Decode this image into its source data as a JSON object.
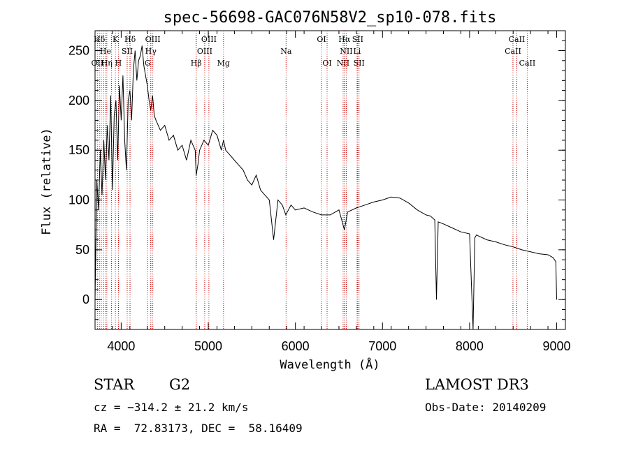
{
  "chart_data": {
    "type": "line",
    "title": "spec-56698-GAC076N58V2_sp10-078.fits",
    "xlabel": "Wavelength (Å)",
    "ylabel": "Flux (relative)",
    "xlim": [
      3700,
      9100
    ],
    "ylim": [
      -30,
      270
    ],
    "xticks": [
      4000,
      5000,
      6000,
      7000,
      8000,
      9000
    ],
    "yticks": [
      0,
      50,
      100,
      150,
      200,
      250
    ],
    "series": [
      {
        "x": [
          3700,
          3720,
          3740,
          3760,
          3780,
          3800,
          3820,
          3840,
          3860,
          3880,
          3900,
          3920,
          3940,
          3960,
          3980,
          4000,
          4020,
          4040,
          4060,
          4080,
          4100,
          4120,
          4140,
          4160,
          4180,
          4200,
          4220,
          4240,
          4260,
          4280,
          4300,
          4320,
          4340,
          4360,
          4380,
          4400,
          4450,
          4500,
          4550,
          4600,
          4650,
          4700,
          4750,
          4800,
          4850,
          4861,
          4880,
          4900,
          4950,
          5000,
          5050,
          5100,
          5150,
          5175,
          5200,
          5250,
          5300,
          5350,
          5400,
          5450,
          5500,
          5550,
          5600,
          5650,
          5700,
          5750,
          5800,
          5850,
          5890,
          5950,
          6000,
          6100,
          6200,
          6300,
          6400,
          6500,
          6563,
          6600,
          6700,
          6800,
          6900,
          7000,
          7100,
          7200,
          7300,
          7400,
          7500,
          7550,
          7600,
          7620,
          7640,
          7700,
          7800,
          7900,
          8000,
          8040,
          8060,
          8080,
          8100,
          8200,
          8300,
          8400,
          8500,
          8600,
          8700,
          8800,
          8900,
          8960,
          8990,
          9000
        ],
        "y": [
          0,
          120,
          90,
          150,
          105,
          160,
          120,
          175,
          140,
          205,
          110,
          185,
          200,
          140,
          215,
          180,
          225,
          160,
          130,
          200,
          210,
          180,
          230,
          250,
          220,
          240,
          245,
          255,
          235,
          225,
          215,
          200,
          190,
          205,
          185,
          180,
          170,
          175,
          160,
          165,
          150,
          155,
          140,
          160,
          150,
          125,
          135,
          150,
          160,
          155,
          170,
          165,
          150,
          160,
          150,
          145,
          140,
          135,
          130,
          120,
          115,
          125,
          110,
          105,
          100,
          60,
          100,
          95,
          85,
          95,
          90,
          92,
          88,
          85,
          85,
          90,
          70,
          88,
          92,
          95,
          98,
          100,
          103,
          102,
          97,
          90,
          85,
          84,
          80,
          0,
          78,
          76,
          72,
          68,
          66,
          -30,
          62,
          65,
          64,
          60,
          58,
          55,
          53,
          50,
          48,
          46,
          45,
          42,
          38,
          0
        ]
      }
    ],
    "spectral_lines": [
      {
        "label": "Hδ",
        "wavelength": 3750,
        "row": 0
      },
      {
        "label": "K",
        "wavelength": 3934,
        "row": 0
      },
      {
        "label": "Hδ",
        "wavelength": 4102,
        "row": 0
      },
      {
        "label": "OIII",
        "wavelength": 4363,
        "row": 0
      },
      {
        "label": "OIII",
        "wavelength": 5007,
        "row": 0
      },
      {
        "label": "OI",
        "wavelength": 6300,
        "row": 0
      },
      {
        "label": "Hα",
        "wavelength": 6563,
        "row": 0
      },
      {
        "label": "SII",
        "wavelength": 6716,
        "row": 0
      },
      {
        "label": "CaII",
        "wavelength": 8542,
        "row": 0
      },
      {
        "label": "He",
        "wavelength": 3820,
        "row": 1
      },
      {
        "label": "SII",
        "wavelength": 4069,
        "row": 1
      },
      {
        "label": "Hγ",
        "wavelength": 4340,
        "row": 1
      },
      {
        "label": "OIII",
        "wavelength": 4959,
        "row": 1
      },
      {
        "label": "Na",
        "wavelength": 5893,
        "row": 1
      },
      {
        "label": "NII",
        "wavelength": 6584,
        "row": 1
      },
      {
        "label": "Li",
        "wavelength": 6708,
        "row": 1
      },
      {
        "label": "CaII",
        "wavelength": 8498,
        "row": 1
      },
      {
        "label": "OII",
        "wavelength": 3727,
        "row": 2
      },
      {
        "label": "Hη",
        "wavelength": 3835,
        "row": 2
      },
      {
        "label": "H",
        "wavelength": 3968,
        "row": 2
      },
      {
        "label": "G",
        "wavelength": 4304,
        "row": 2
      },
      {
        "label": "Hβ",
        "wavelength": 4861,
        "row": 2
      },
      {
        "label": "Mg",
        "wavelength": 5175,
        "row": 2
      },
      {
        "label": "OI",
        "wavelength": 6364,
        "row": 2
      },
      {
        "label": "NII",
        "wavelength": 6548,
        "row": 2
      },
      {
        "label": "SII",
        "wavelength": 6731,
        "row": 2
      },
      {
        "label": "CaII",
        "wavelength": 8662,
        "row": 2
      }
    ],
    "extra_line_markers": [
      3771,
      3798,
      3889,
      3970,
      4101,
      4340,
      4861,
      6563,
      6584,
      8542
    ]
  },
  "footer": {
    "object_type": "STAR",
    "subclass": "G2",
    "survey": "LAMOST DR3",
    "cz": "cz = −314.2 ± 21.2 km/s",
    "obs_date": "Obs-Date: 20140209",
    "coords": "RA =  72.83173, DEC =  58.16409"
  },
  "colors": {
    "spectrum": "#000000",
    "line_markers": "#cc0000"
  }
}
